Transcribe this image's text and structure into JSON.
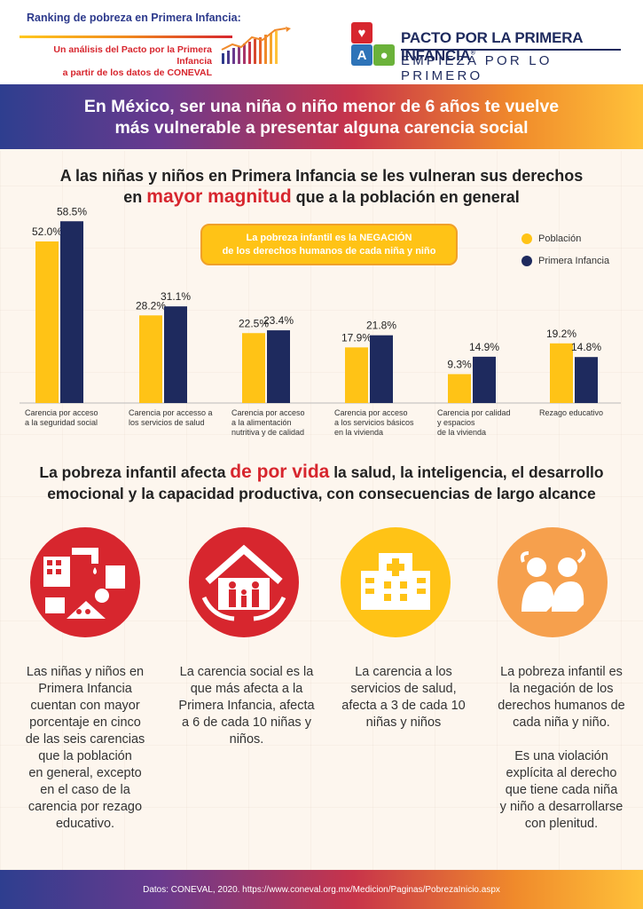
{
  "header": {
    "title": "Ranking de pobreza en Primera Infancia:",
    "subtitle_line1": "Un análisis del Pacto por la Primera Infancia",
    "subtitle_line2": "a partir de los datos de CONEVAL",
    "logo_name": "PACTO POR LA PRIMERA INFANCIA",
    "logo_tagline": "EMPIEZA POR LO PRIMERO",
    "logo_block_letter": "A",
    "colors": {
      "navy": "#1e2a5e",
      "red": "#d7262e",
      "yellow": "#ffc316",
      "orange": "#f08a2b",
      "blue": "#2d73b8",
      "green": "#6bb23a"
    }
  },
  "banner": {
    "line1": "En México, ser una niña o niño menor de 6 años te vuelve",
    "line2": "más vulnerable a presentar alguna carencia social"
  },
  "section1": {
    "heading_line1": "A las niñas y niños en Primera Infancia se les vulneran sus derechos",
    "heading_pre": "en ",
    "heading_highlight": "mayor magnitud",
    "heading_post": " que a la población en general",
    "callout_line1": "La pobreza infantil es la NEGACIÓN",
    "callout_line2": "de los derechos humanos de cada niña y niño"
  },
  "chart_data": {
    "type": "bar",
    "categories": [
      [
        "Carencia por acceso",
        "a la seguridad social"
      ],
      [
        "Carencia por accesso a",
        "los servicios de salud"
      ],
      [
        "Carencia por acceso",
        "a la alimentación",
        "nutritiva y de calidad"
      ],
      [
        "Carencia por acceso",
        "a los servicios básicos",
        "en la vivienda"
      ],
      [
        "Carencia por calidad",
        "y espacios",
        "de la vivienda"
      ],
      [
        "Rezago educativo"
      ]
    ],
    "series": [
      {
        "name": "Población",
        "color": "#ffc316",
        "values": [
          52.0,
          28.2,
          22.5,
          17.9,
          9.3,
          19.2
        ],
        "labels": [
          "52.0%",
          "28.2%",
          "22.5%",
          "17.9%",
          "9.3%",
          "19.2%"
        ]
      },
      {
        "name": "Primera Infancia",
        "color": "#1e2a5e",
        "values": [
          58.5,
          31.1,
          23.4,
          21.8,
          14.9,
          14.8
        ],
        "labels": [
          "58.5%",
          "31.1%",
          "23.4%",
          "21.8%",
          "14.9%",
          "14.8%"
        ]
      }
    ],
    "ylim": [
      0,
      60
    ],
    "legend_position": "top-right",
    "grid": false
  },
  "section2": {
    "heading_pre": "La pobreza infantil afecta ",
    "heading_highlight": "de por vida",
    "heading_post1": " la salud, la inteligencia, el desarrollo",
    "heading_line2": "emocional y la capacidad productiva, con consecuencias de largo alcance"
  },
  "icons": [
    {
      "name": "services-icon",
      "color": "#d7262e"
    },
    {
      "name": "family-house-icon",
      "color": "#d7262e"
    },
    {
      "name": "hospital-icon",
      "color": "#ffc316"
    },
    {
      "name": "sad-children-icon",
      "color": "#f6a04d"
    }
  ],
  "descriptions": [
    [
      "Las niñas y niños en",
      "Primera Infancia",
      "cuentan con mayor",
      "porcentaje en cinco",
      "de las seis carencias",
      "que la población",
      "en general, excepto",
      "en el caso de la",
      "carencia por rezago",
      "educativo."
    ],
    [
      "La carencia social es la",
      "que más afecta a la",
      "Primera Infancia, afecta",
      "a 6 de cada 10 niñas y",
      "niños."
    ],
    [
      "La carencia a los",
      "servicios de salud,",
      "afecta a 3 de cada 10",
      "niñas y niños"
    ],
    [
      "La pobreza infantil es",
      "la negación de los",
      "derechos humanos de",
      "cada niña y niño.",
      "",
      "Es una violación",
      "explícita al derecho",
      "que tiene cada niña",
      "y niño a desarrollarse",
      "con plenitud."
    ]
  ],
  "footer": {
    "source": "Datos: CONEVAL, 2020. https://www.coneval.org.mx/Medicion/Paginas/PobrezaInicio.aspx"
  }
}
